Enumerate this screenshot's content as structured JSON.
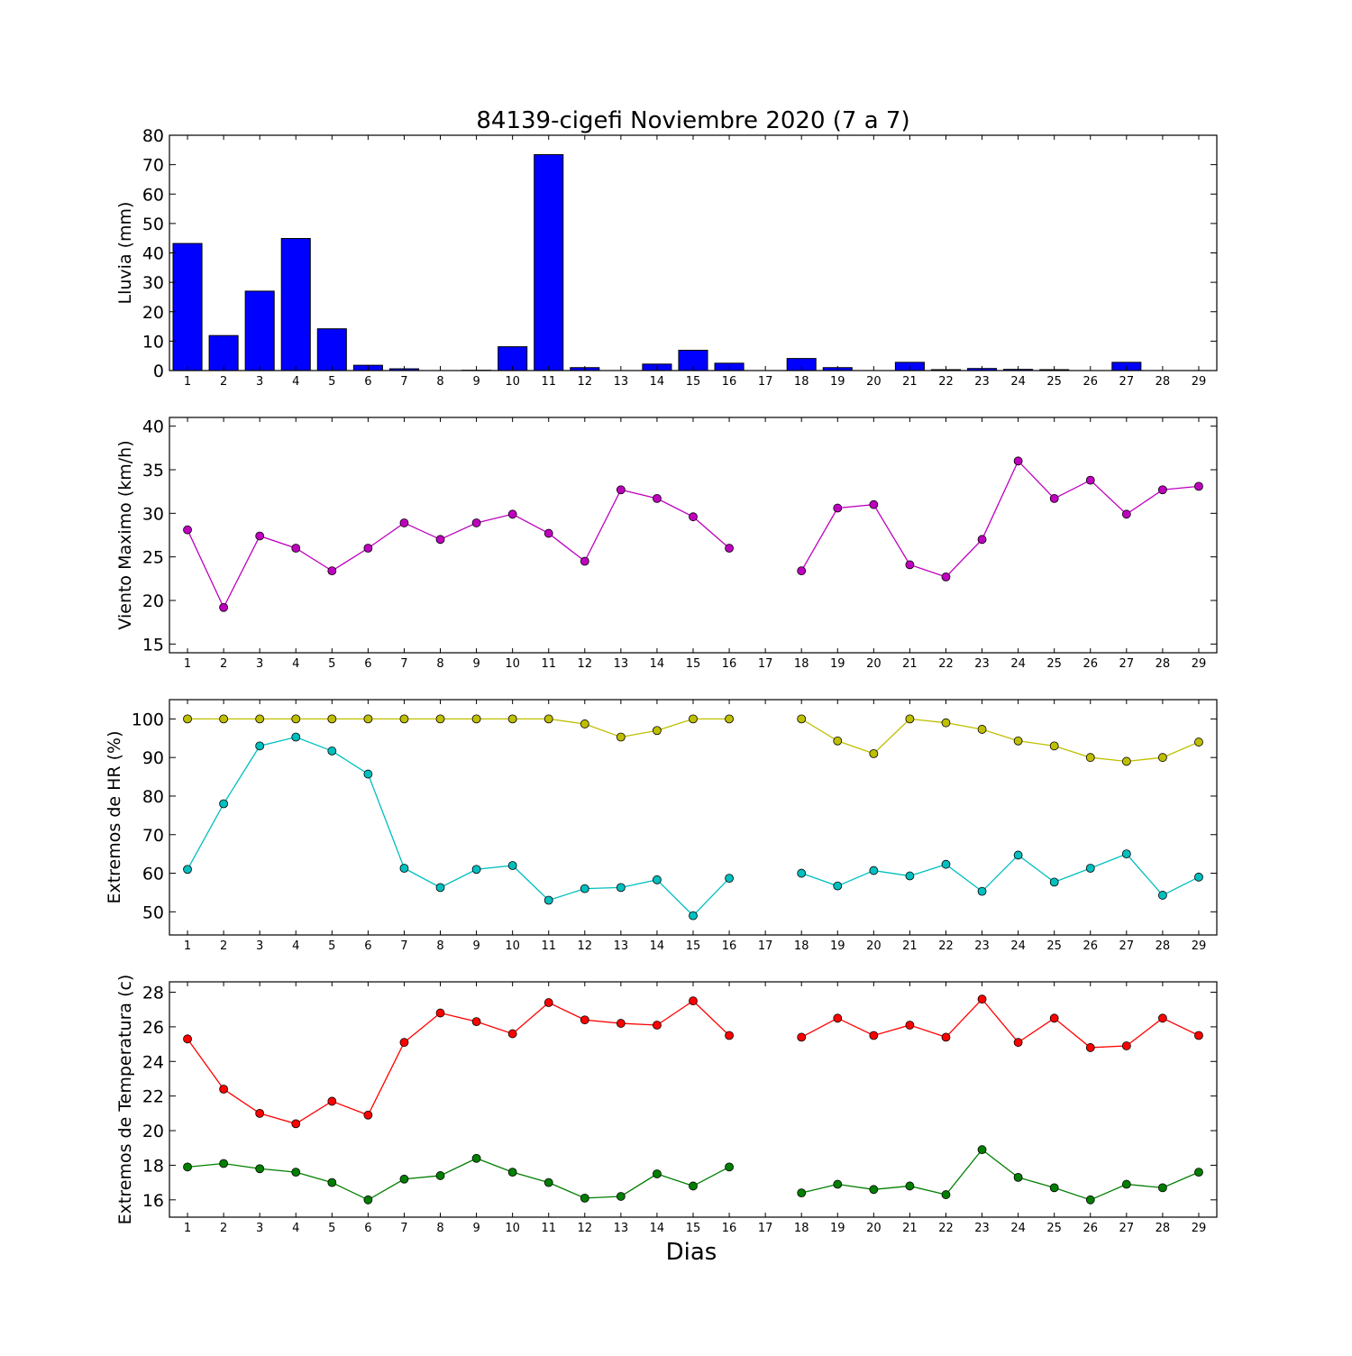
{
  "chart_data": [
    {
      "type": "bar",
      "title": "84139-cigefi Noviembre 2020  (7 a 7)",
      "xlabel": "",
      "ylabel": "Lluvia (mm)",
      "x": [
        1,
        2,
        3,
        4,
        5,
        6,
        7,
        8,
        9,
        10,
        11,
        12,
        13,
        14,
        15,
        16,
        17,
        18,
        19,
        20,
        21,
        22,
        23,
        24,
        25,
        26,
        27,
        28,
        29
      ],
      "values": [
        43.2,
        11.9,
        27.0,
        44.9,
        14.2,
        1.8,
        0.6,
        0.0,
        0.1,
        8.1,
        73.4,
        1.0,
        0.0,
        2.2,
        6.9,
        2.5,
        0.0,
        4.1,
        1.0,
        0.0,
        2.8,
        0.3,
        0.7,
        0.4,
        0.3,
        0.0,
        2.8,
        0.0,
        0.0
      ],
      "ylim": [
        0,
        80
      ],
      "yticks": [
        0,
        10,
        20,
        30,
        40,
        50,
        60,
        70,
        80
      ],
      "color": "#0000ff"
    },
    {
      "type": "line",
      "xlabel": "",
      "ylabel": "Viento Maximo (km/h)",
      "x": [
        1,
        2,
        3,
        4,
        5,
        6,
        7,
        8,
        9,
        10,
        11,
        12,
        13,
        14,
        15,
        16,
        17,
        18,
        19,
        20,
        21,
        22,
        23,
        24,
        25,
        26,
        27,
        28,
        29
      ],
      "series": [
        {
          "values": [
            28.1,
            19.2,
            27.4,
            26.0,
            23.4,
            26.0,
            28.9,
            27.0,
            28.9,
            29.9,
            27.7,
            24.5,
            32.7,
            31.7,
            29.6,
            26.0,
            null,
            23.4,
            30.6,
            31.0,
            24.1,
            22.7,
            27.0,
            36.0,
            31.7,
            33.8,
            29.9,
            32.7,
            33.1
          ],
          "color": "#bf00bf"
        }
      ],
      "ylim": [
        14,
        41
      ],
      "yticks": [
        15,
        20,
        25,
        30,
        35,
        40
      ]
    },
    {
      "type": "line",
      "xlabel": "",
      "ylabel": "Extremos de HR (%)",
      "x": [
        1,
        2,
        3,
        4,
        5,
        6,
        7,
        8,
        9,
        10,
        11,
        12,
        13,
        14,
        15,
        16,
        17,
        18,
        19,
        20,
        21,
        22,
        23,
        24,
        25,
        26,
        27,
        28,
        29
      ],
      "series": [
        {
          "values": [
            100,
            100,
            100,
            100,
            100,
            100,
            100,
            100,
            100,
            100,
            100,
            98.7,
            95.3,
            97.0,
            100,
            100,
            null,
            100,
            94.3,
            91.0,
            100,
            99.0,
            97.3,
            94.3,
            93.0,
            90.0,
            89.0,
            90.0,
            94.0
          ],
          "color": "#bfbf00"
        },
        {
          "values": [
            61.0,
            78.0,
            93.0,
            95.3,
            91.7,
            85.7,
            61.3,
            56.3,
            61.0,
            62.0,
            53.0,
            56.0,
            56.3,
            58.3,
            49.0,
            58.7,
            null,
            60.0,
            56.7,
            60.7,
            59.3,
            62.3,
            55.3,
            64.7,
            57.7,
            61.3,
            65.0,
            54.3,
            59.0
          ],
          "color": "#00bfbf"
        }
      ],
      "ylim": [
        44,
        105
      ],
      "yticks": [
        50,
        60,
        70,
        80,
        90,
        100
      ]
    },
    {
      "type": "line",
      "xlabel": "Dias",
      "ylabel": "Extremos de Temperatura (c)",
      "x": [
        1,
        2,
        3,
        4,
        5,
        6,
        7,
        8,
        9,
        10,
        11,
        12,
        13,
        14,
        15,
        16,
        17,
        18,
        19,
        20,
        21,
        22,
        23,
        24,
        25,
        26,
        27,
        28,
        29
      ],
      "series": [
        {
          "values": [
            25.3,
            22.4,
            21.0,
            20.4,
            21.7,
            20.9,
            25.1,
            26.8,
            26.3,
            25.6,
            27.4,
            26.4,
            26.2,
            26.1,
            27.5,
            25.5,
            null,
            25.4,
            26.5,
            25.5,
            26.1,
            25.4,
            27.6,
            25.1,
            26.5,
            24.8,
            24.9,
            26.5,
            25.5
          ],
          "color": "#ff0000"
        },
        {
          "values": [
            17.9,
            18.1,
            17.8,
            17.6,
            17.0,
            16.0,
            17.2,
            17.4,
            18.4,
            17.6,
            17.0,
            16.1,
            16.2,
            17.5,
            16.8,
            17.9,
            null,
            16.4,
            16.9,
            16.6,
            16.8,
            16.3,
            18.9,
            17.3,
            16.7,
            16.0,
            16.9,
            16.7,
            17.6
          ],
          "color": "#007f00"
        }
      ],
      "ylim": [
        15,
        28.6
      ],
      "yticks": [
        16,
        18,
        20,
        22,
        24,
        26,
        28
      ]
    }
  ]
}
